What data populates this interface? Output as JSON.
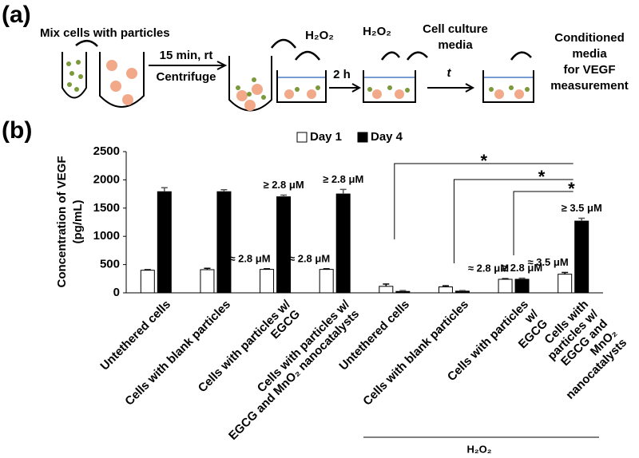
{
  "panel_a": "(a)",
  "panel_b": "(b)",
  "schematic": {
    "mix": "Mix cells with particles",
    "incubation": "15 min, rt",
    "centrifuge": "Centrifuge",
    "h2o2_first": "H₂O₂",
    "two_hours": "2 h",
    "h2o2_second": "H₂O₂",
    "media": [
      "Cell culture",
      "media"
    ],
    "time": "t",
    "conditioned": [
      "Conditioned",
      "media",
      "for VEGF",
      "measurement"
    ]
  },
  "chart_data": {
    "type": "bar",
    "ylabel": [
      "Concentration of VEGF",
      "(pg/mL)"
    ],
    "categories": [
      "Untethered cells",
      "Cells with blank particles",
      "Cells with particles w/\nEGCG",
      "Cells with particles w/\nEGCG and MnO₂ nanocatalysts",
      "Untethered cells",
      "Cells with blank particles",
      "Cells with particles w/\nEGCG",
      "Cells with particles w/\nEGCG and MnO₂ nanocatalysts"
    ],
    "series": [
      {
        "name": "Day 1",
        "color": "#ffffff",
        "values": [
          400,
          410,
          415,
          415,
          115,
          105,
          240,
          330
        ],
        "errors": [
          10,
          25,
          10,
          10,
          40,
          20,
          10,
          30
        ],
        "annotations": [
          null,
          null,
          "≈ 2.8 μM",
          "≈ 2.8 μM",
          null,
          null,
          "≈ 2.8 μM",
          "≈ 3.5 μM"
        ]
      },
      {
        "name": "Day 4",
        "color": "#000000",
        "values": [
          1790,
          1790,
          1700,
          1750,
          25,
          30,
          240,
          1270
        ],
        "errors": [
          70,
          35,
          30,
          80,
          15,
          10,
          20,
          50
        ],
        "annotations": [
          null,
          null,
          "≥ 2.8 μM",
          "≥ 2.8 μM",
          null,
          null,
          "≥ 2.8 μM",
          "≥ 3.5 μM"
        ]
      }
    ],
    "ylim": [
      0,
      2500
    ],
    "yticks": [
      0,
      500,
      1000,
      1500,
      2000,
      2500
    ],
    "significance": [
      {
        "label": "*",
        "from": 4,
        "to": 7
      },
      {
        "label": "*",
        "from": 5,
        "to": 7
      },
      {
        "label": "*",
        "from": 6,
        "to": 7
      }
    ],
    "group_label": "H₂O₂",
    "legend": "top"
  }
}
